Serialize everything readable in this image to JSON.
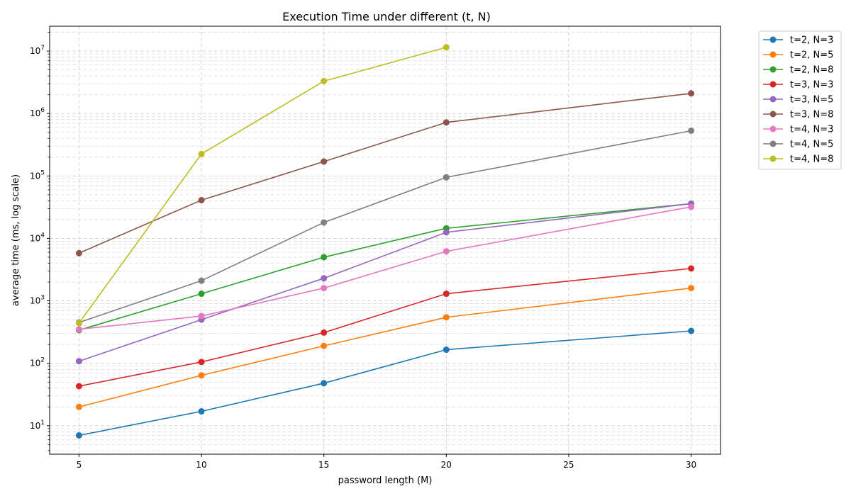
{
  "chart_data": {
    "type": "line",
    "title": "Execution Time under different (t, N)",
    "xlabel": "password length (M)",
    "ylabel": "average time (ms, log scale)",
    "yscale": "log",
    "xlim": [
      3.8,
      31.2
    ],
    "ylim": [
      3.5,
      25000000
    ],
    "xticks": [
      5,
      10,
      15,
      20,
      25,
      30
    ],
    "yticks": [
      {
        "value": 10,
        "base": "10",
        "exp": "1"
      },
      {
        "value": 100,
        "base": "10",
        "exp": "2"
      },
      {
        "value": 1000,
        "base": "10",
        "exp": "3"
      },
      {
        "value": 10000,
        "base": "10",
        "exp": "4"
      },
      {
        "value": 100000,
        "base": "10",
        "exp": "5"
      },
      {
        "value": 1000000,
        "base": "10",
        "exp": "6"
      },
      {
        "value": 10000000,
        "base": "10",
        "exp": "7"
      }
    ],
    "grid": true,
    "legend_position": "outside-right",
    "series": [
      {
        "name": "t=2, N=3",
        "color": "#1f77b4",
        "x": [
          5,
          10,
          15,
          20,
          30
        ],
        "y": [
          7,
          17,
          48,
          165,
          330
        ]
      },
      {
        "name": "t=2, N=5",
        "color": "#ff7f0e",
        "x": [
          5,
          10,
          15,
          20,
          30
        ],
        "y": [
          20,
          64,
          190,
          545,
          1600
        ]
      },
      {
        "name": "t=2, N=8",
        "color": "#2ca02c",
        "x": [
          5,
          10,
          15,
          20,
          30
        ],
        "y": [
          340,
          1300,
          5000,
          14500,
          36000
        ]
      },
      {
        "name": "t=3, N=3",
        "color": "#d62728",
        "x": [
          5,
          10,
          15,
          20,
          30
        ],
        "y": [
          43,
          105,
          310,
          1300,
          3300
        ]
      },
      {
        "name": "t=3, N=5",
        "color": "#9467bd",
        "x": [
          5,
          10,
          15,
          20,
          30
        ],
        "y": [
          108,
          500,
          2300,
          12500,
          36000
        ]
      },
      {
        "name": "t=3, N=8",
        "color": "#8c564b",
        "x": [
          5,
          10,
          15,
          20,
          30
        ],
        "y": [
          5800,
          41000,
          170000,
          720000,
          2100000
        ]
      },
      {
        "name": "t=4, N=3",
        "color": "#e377c2",
        "x": [
          5,
          10,
          15,
          20,
          30
        ],
        "y": [
          350,
          570,
          1600,
          6200,
          32000
        ]
      },
      {
        "name": "t=4, N=5",
        "color": "#7f7f7f",
        "x": [
          5,
          10,
          15,
          20,
          30
        ],
        "y": [
          450,
          2100,
          18000,
          95000,
          530000
        ]
      },
      {
        "name": "t=4, N=8",
        "color": "#bcbd22",
        "x": [
          5,
          10,
          15,
          20
        ],
        "y": [
          440,
          225000,
          3300000,
          11500000
        ]
      }
    ]
  }
}
